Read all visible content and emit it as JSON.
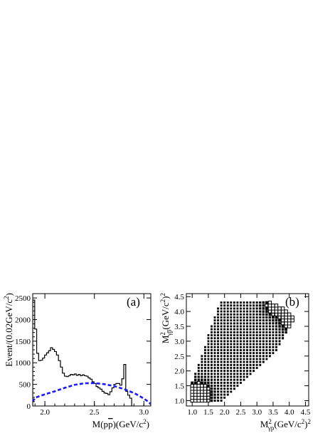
{
  "chart_data": [
    {
      "id": "a",
      "type": "line",
      "panel_tag": "(a)",
      "xlabel": "M(p̅p̅)(GeV/c²)",
      "xlabel_parts": {
        "pre": "M(p",
        "bar": "p",
        "post": ")(GeV/c",
        "sup": "2",
        "end": ")"
      },
      "ylabel_parts": {
        "pre": "Event/(0.02GeV/c",
        "sup": "2",
        "end": ")"
      },
      "xlim": [
        1.877,
        3.07
      ],
      "ylim": [
        0,
        2600
      ],
      "xticks": [
        2.0,
        2.5,
        3.0
      ],
      "xtick_labels": [
        "2.0",
        "2.5",
        "3.0"
      ],
      "yticks": [
        0,
        500,
        1000,
        1500,
        2000,
        2500
      ],
      "ytick_labels": [
        "0",
        "500",
        "1000",
        "1500",
        "2000",
        "2500"
      ],
      "grid": false,
      "series": [
        {
          "style": "histogram",
          "color": "#000000",
          "bin_width": 0.02,
          "bin_edges_start": 1.877,
          "values": [
            2450,
            1780,
            1220,
            1050,
            1060,
            1110,
            1180,
            1230,
            1280,
            1350,
            1310,
            1260,
            1180,
            1050,
            900,
            760,
            690,
            680,
            700,
            730,
            720,
            740,
            710,
            730,
            700,
            720,
            700,
            690,
            650,
            620,
            560,
            520,
            450,
            420,
            390,
            340,
            300,
            290,
            260,
            330,
            420,
            500,
            520,
            520,
            480,
            630,
            960,
            340,
            250,
            180
          ]
        },
        {
          "style": "dashed-curve",
          "color": "#1a1aff",
          "x": [
            1.877,
            1.9,
            1.95,
            2.0,
            2.1,
            2.2,
            2.3,
            2.4,
            2.5,
            2.6,
            2.7,
            2.8,
            2.9,
            2.95,
            3.0,
            3.05,
            3.07
          ],
          "y": [
            100,
            190,
            230,
            270,
            340,
            420,
            490,
            525,
            530,
            505,
            460,
            390,
            300,
            240,
            170,
            90,
            40
          ]
        }
      ]
    },
    {
      "id": "b",
      "type": "heatmap",
      "panel_tag": "(b)",
      "xlabel_parts": {
        "pre": "M",
        "sup": "2",
        "sub": "γp",
        "post": "(GeV/c",
        "sup2": "2",
        "end": ")",
        "exp": "2"
      },
      "ylabel_parts": {
        "pre": "M",
        "sup": "2",
        "sub": "γp̅",
        "post": "(GeV/c",
        "sup2": "2",
        "end": ")",
        "exp": "2"
      },
      "xlim": [
        0.82,
        4.6
      ],
      "ylim": [
        0.82,
        4.6
      ],
      "xticks": [
        1.0,
        1.5,
        2.0,
        2.5,
        3.0,
        3.5,
        4.0,
        4.5
      ],
      "xtick_labels": [
        "1.0",
        "1.5",
        "2.0",
        "2.5",
        "3.0",
        "3.5",
        "4.0",
        "4.5"
      ],
      "yticks": [
        1.0,
        1.5,
        2.0,
        2.5,
        3.0,
        3.5,
        4.0,
        4.5
      ],
      "ytick_labels": [
        "1.0",
        "1.5",
        "2.0",
        "2.5",
        "3.0",
        "3.5",
        "4.0",
        "4.5"
      ],
      "grid": false,
      "cell_size": 0.1,
      "density_hotspots": [
        {
          "x": 1.1,
          "y": 1.0,
          "weight": 1.0
        },
        {
          "x": 1.2,
          "y": 1.3,
          "weight": 0.8
        },
        {
          "x": 4.1,
          "y": 3.7,
          "weight": 1.0
        },
        {
          "x": 3.6,
          "y": 4.2,
          "weight": 0.9
        },
        {
          "x": 4.3,
          "y": 2.8,
          "weight": 0.7
        }
      ]
    }
  ]
}
